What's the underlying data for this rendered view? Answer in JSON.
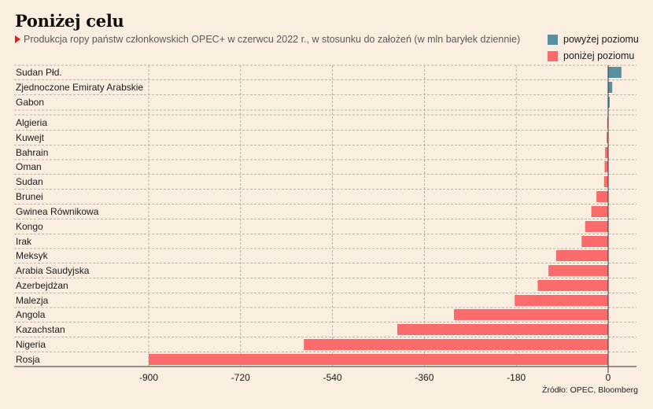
{
  "title": "Poniżej celu",
  "subtitle": "Produkcja ropy państw członkowskich OPEC+ w czerwcu 2022 r., w stosunku do założeń (w mln baryłek dziennie)",
  "source": "Źródło: OPEC, Bloomberg",
  "legend": [
    {
      "label": "powyżej poziomu",
      "color": "#5a8fa0"
    },
    {
      "label": "poniżej poziomu",
      "color": "#fc6b6b"
    }
  ],
  "chart_data": {
    "type": "bar",
    "orientation": "horizontal",
    "categories": [
      "Sudan Płd.",
      "Zjednoczone Emiraty Arabskie",
      "Gabon",
      "Algieria",
      "Kuwejt",
      "Bahrain",
      "Oman",
      "Sudan",
      "Brunei",
      "Gwinea Równikowa",
      "Kongo",
      "Irak",
      "Meksyk",
      "Arabia Saudyjska",
      "Azerbejdżan",
      "Malezja",
      "Angola",
      "Kazachstan",
      "Nigeria",
      "Rosja"
    ],
    "values": [
      26,
      8,
      3,
      -2,
      -3,
      -6,
      -7,
      -8,
      -23,
      -33,
      -45,
      -52,
      -102,
      -117,
      -138,
      -183,
      -302,
      -413,
      -596,
      -900
    ],
    "xlim": [
      -900,
      0
    ],
    "xticks": [
      -900,
      -720,
      -540,
      -360,
      -180,
      0
    ],
    "xtick_labels": [
      "-900",
      "-720",
      "-540",
      "-360",
      "-180",
      "0"
    ],
    "positive_color": "#5a8fa0",
    "negative_color": "#fc6b6b",
    "grid": true
  }
}
